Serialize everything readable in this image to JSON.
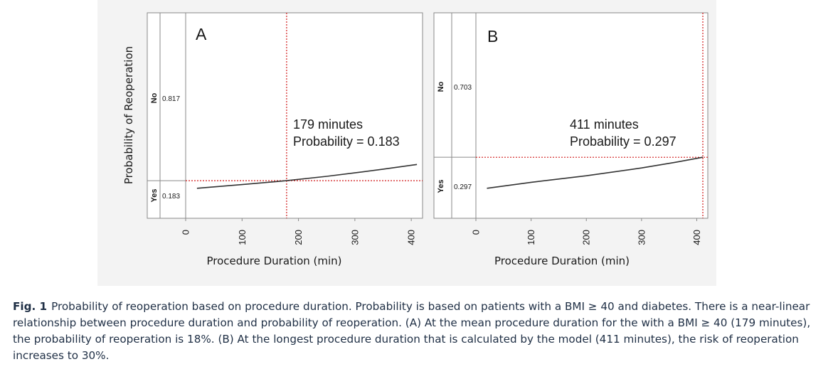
{
  "chart_data": [
    {
      "type": "line",
      "panel_label": "A",
      "xlabel": "Procedure Duration (min)",
      "ylabel": "Probability of Reoperation",
      "xlim": [
        0,
        420
      ],
      "ylim": [
        0,
        1
      ],
      "x_ticks": [
        "0",
        "100",
        "200",
        "300",
        "400"
      ],
      "y_categories": [
        {
          "name": "No",
          "value": "0.817"
        },
        {
          "name": "Yes",
          "value": "0.183"
        }
      ],
      "series": [
        {
          "name": "probability",
          "x": [
            20,
            100,
            179,
            250,
            300,
            350,
            410
          ],
          "y": [
            0.146,
            0.164,
            0.183,
            0.204,
            0.221,
            0.239,
            0.262
          ]
        }
      ],
      "marker": {
        "x": 179,
        "y": 0.183
      },
      "annotation": [
        "179 minutes",
        "Probability = 0.183"
      ]
    },
    {
      "type": "line",
      "panel_label": "B",
      "xlabel": "Procedure Duration (min)",
      "ylabel": "",
      "xlim": [
        0,
        420
      ],
      "ylim": [
        0,
        1
      ],
      "x_ticks": [
        "0",
        "100",
        "200",
        "300",
        "400"
      ],
      "y_categories": [
        {
          "name": "No",
          "value": "0.703"
        },
        {
          "name": "Yes",
          "value": "0.297"
        }
      ],
      "series": [
        {
          "name": "probability",
          "x": [
            20,
            100,
            200,
            300,
            360,
            411
          ],
          "y": [
            0.146,
            0.175,
            0.207,
            0.245,
            0.272,
            0.297
          ]
        }
      ],
      "marker": {
        "x": 411,
        "y": 0.297
      },
      "annotation": [
        "411 minutes",
        "Probability = 0.297"
      ]
    }
  ],
  "caption": {
    "label": "Fig. 1",
    "text": "Probability of reoperation based on procedure duration. Probability is based on patients with a BMI ≥ 40 and diabetes. There is a near-linear relationship between procedure duration and probability of reoperation. (A) At the mean procedure duration for the with a BMI ≥ 40 (179 minutes), the probability of reoperation is 18%. (B) At the longest procedure duration that is calculated by the model (411 minutes), the risk of reoperation increases to 30%."
  }
}
